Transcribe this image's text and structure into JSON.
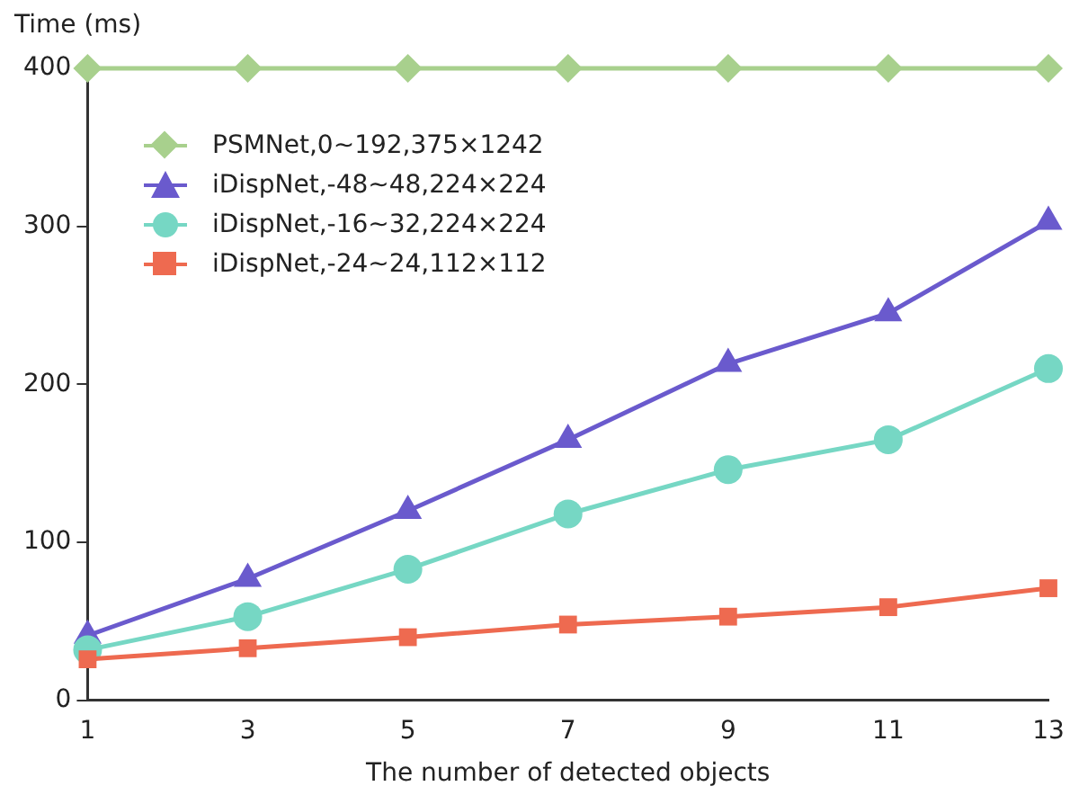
{
  "chart_data": {
    "type": "line",
    "xlabel": "The number of detected objects",
    "ylabel": "Time (ms)",
    "x": [
      1,
      3,
      5,
      7,
      9,
      11,
      13
    ],
    "xlim": [
      1,
      13
    ],
    "xticks": [
      1,
      3,
      5,
      7,
      9,
      11,
      13
    ],
    "ylim": [
      0,
      400
    ],
    "yticks": [
      0,
      100,
      200,
      300,
      400
    ],
    "grid": false,
    "legend": "top left",
    "line_style": "solid",
    "series": [
      {
        "name": "PSMNet,0~192,375×1242",
        "color": "#a8d08d",
        "marker": "diamond",
        "values": [
          400,
          400,
          400,
          400,
          400,
          400,
          400
        ]
      },
      {
        "name": "iDispNet,-48~48,224×224",
        "color": "#6a5acd",
        "marker": "triangle",
        "values": [
          41,
          77,
          120,
          165,
          213,
          245,
          303
        ]
      },
      {
        "name": "iDispNet,-16~32,224×224",
        "color": "#76d7c4",
        "marker": "circle",
        "values": [
          32,
          53,
          83,
          118,
          146,
          165,
          210
        ]
      },
      {
        "name": "iDispNet,-24~24,112×112",
        "color": "#ee6a50",
        "marker": "square",
        "values": [
          26,
          33,
          40,
          48,
          53,
          59,
          71
        ]
      }
    ]
  }
}
